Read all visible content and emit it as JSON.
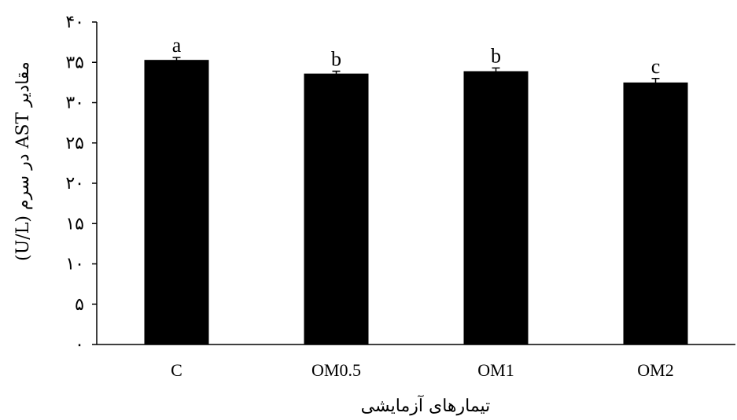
{
  "chart_data": {
    "type": "bar",
    "title": "",
    "xlabel": "تیمارهای آزمایشی",
    "ylabel": "مقادیر AST در سرم (U/L)",
    "ylim": [
      0,
      40
    ],
    "yticks": [
      0,
      5,
      10,
      15,
      20,
      25,
      30,
      35,
      40
    ],
    "ytick_labels": [
      "۰",
      "۵",
      "۱۰",
      "۱۵",
      "۲۰",
      "۲۵",
      "۳۰",
      "۳۵",
      "۴۰"
    ],
    "categories": [
      "C",
      "OM0.5",
      "OM1",
      "OM2"
    ],
    "values": [
      35.3,
      33.6,
      33.9,
      32.5
    ],
    "errors": [
      0.3,
      0.3,
      0.4,
      0.5
    ],
    "significance": [
      "a",
      "b",
      "b",
      "c"
    ],
    "bar_color": "#000000",
    "grid": false,
    "legend": "none"
  }
}
